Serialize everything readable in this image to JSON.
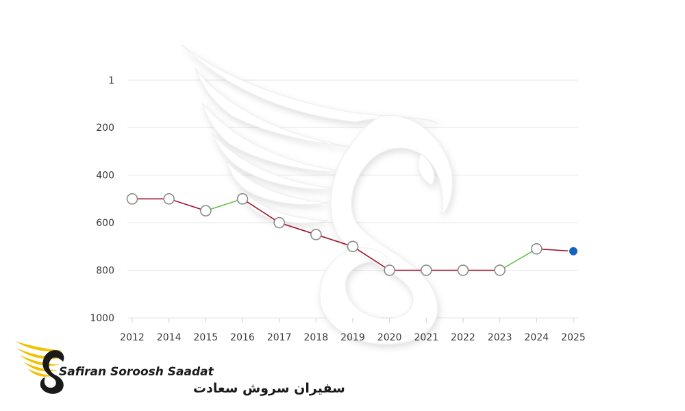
{
  "chart_data": {
    "type": "line",
    "title": "",
    "xlabel": "",
    "ylabel": "",
    "categories": [
      "2012",
      "2014",
      "2015",
      "2016",
      "2017",
      "2018",
      "2019",
      "2020",
      "2021",
      "2022",
      "2023",
      "2024",
      "2025"
    ],
    "series": [
      {
        "values": [
          500,
          500,
          550,
          500,
          600,
          650,
          700,
          800,
          800,
          800,
          800,
          710,
          720
        ]
      }
    ],
    "y_ticks": [
      "1",
      "200",
      "400",
      "600",
      "800",
      "1000"
    ],
    "y_tick_values": [
      1,
      200,
      400,
      600,
      800,
      1000
    ],
    "ylim": [
      1,
      1000
    ],
    "y_inverted": true,
    "grid": true,
    "colors": {
      "rank_worse": "#a0142c",
      "rank_better": "#6cc24a",
      "grid": "#e6e6e6",
      "marker_fill": "#ffffff",
      "marker_stroke": "#8a8a8a",
      "latest_marker": "#1565c0"
    }
  },
  "watermark": {
    "icon": "swan-wing-icon"
  },
  "brand": {
    "name_en": "Safiran Soroosh Saadat",
    "name_fa": "سفیران سروش سعادت",
    "logo_icon": "winged-s-logo-icon",
    "colors": {
      "wing": "#f2c200",
      "text": "#1a1a1a"
    }
  }
}
